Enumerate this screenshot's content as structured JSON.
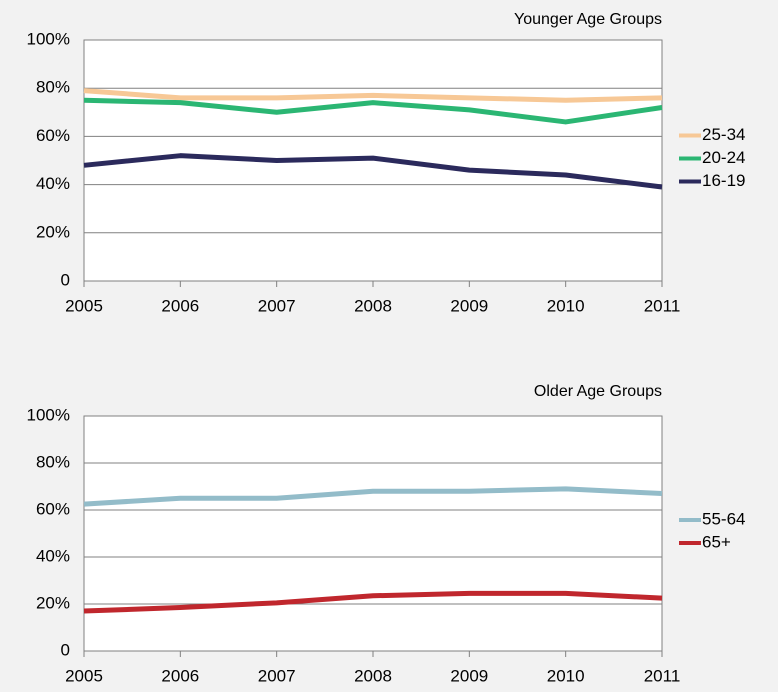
{
  "chart_data": [
    {
      "type": "line",
      "title": "Younger Age Groups",
      "x": [
        2005,
        2006,
        2007,
        2008,
        2009,
        2010,
        2011
      ],
      "xlim": [
        2005,
        2011
      ],
      "xticks": [
        2005,
        2006,
        2007,
        2008,
        2009,
        2010,
        2011
      ],
      "ylim": [
        0,
        100
      ],
      "yticks": [
        0,
        {
          "value": 20,
          "label": "20%"
        },
        {
          "value": 40,
          "label": "40%"
        },
        {
          "value": 60,
          "label": "60%"
        },
        {
          "value": 80,
          "label": "80%"
        },
        {
          "value": 100,
          "label": "100%"
        }
      ],
      "grid": true,
      "legend": "right",
      "series": [
        {
          "name": "25-34",
          "color": "#f7c896",
          "values": [
            79,
            76,
            76,
            77,
            76,
            75,
            76
          ]
        },
        {
          "name": "20-24",
          "color": "#2bb673",
          "values": [
            75,
            74,
            70,
            74,
            71,
            66,
            72
          ]
        },
        {
          "name": "16-19",
          "color": "#2b2a5c",
          "values": [
            48,
            52,
            50,
            51,
            46,
            44,
            39
          ]
        }
      ]
    },
    {
      "type": "line",
      "title": "Older Age Groups",
      "x": [
        2005,
        2006,
        2007,
        2008,
        2009,
        2010,
        2011
      ],
      "xlim": [
        2005,
        2011
      ],
      "xticks": [
        2005,
        2006,
        2007,
        2008,
        2009,
        2010,
        2011
      ],
      "ylim": [
        0,
        100
      ],
      "yticks": [
        0,
        {
          "value": 20,
          "label": "20%"
        },
        {
          "value": 40,
          "label": "40%"
        },
        {
          "value": 60,
          "label": "60%"
        },
        {
          "value": 80,
          "label": "80%"
        },
        {
          "value": 100,
          "label": "100%"
        }
      ],
      "grid": true,
      "legend": "right",
      "series": [
        {
          "name": "55-64",
          "color": "#93bcc9",
          "values": [
            62.5,
            65,
            65,
            68,
            68,
            69,
            67
          ]
        },
        {
          "name": "65+",
          "color": "#c0272d",
          "values": [
            17,
            18.5,
            20.5,
            23.5,
            24.5,
            24.5,
            22.5
          ]
        }
      ]
    }
  ]
}
